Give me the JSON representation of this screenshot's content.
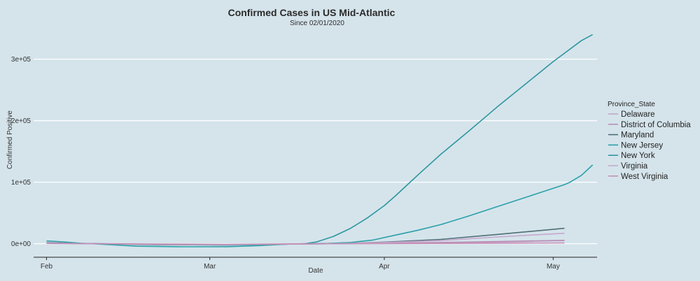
{
  "chart_data": {
    "type": "line",
    "title": "Confirmed Cases in US Mid-Atlantic",
    "subtitle": "Since 02/01/2020",
    "xlabel": "Date",
    "ylabel": "Confirmed Positive",
    "x_ticks": [
      {
        "label": "Feb",
        "day": 0
      },
      {
        "label": "Mar",
        "day": 29
      },
      {
        "label": "Apr",
        "day": 60
      },
      {
        "label": "May",
        "day": 90
      }
    ],
    "xlim_days": [
      -2.3,
      97.8
    ],
    "y_ticks": [
      {
        "label": "0e+00",
        "value": 0
      },
      {
        "label": "1e+05",
        "value": 100000
      },
      {
        "label": "2e+05",
        "value": 200000
      },
      {
        "label": "3e+05",
        "value": 300000
      }
    ],
    "ylim": [
      -22000,
      345000
    ],
    "grid": true,
    "legend_title": "Province_State",
    "legend_position": "right",
    "series": [
      {
        "name": "Delaware",
        "color": "#c4a6c6",
        "points": [
          [
            0,
            2000
          ],
          [
            8,
            0
          ],
          [
            20,
            -1000
          ],
          [
            32,
            -2000
          ],
          [
            44,
            -500
          ],
          [
            52,
            0
          ],
          [
            60,
            800
          ],
          [
            70,
            1500
          ],
          [
            80,
            2500
          ],
          [
            92,
            5000
          ]
        ]
      },
      {
        "name": "District of Columbia",
        "color": "#b88fb8",
        "points": [
          [
            0,
            1500
          ],
          [
            8,
            0
          ],
          [
            20,
            -1500
          ],
          [
            32,
            -2000
          ],
          [
            44,
            -500
          ],
          [
            52,
            0
          ],
          [
            60,
            1000
          ],
          [
            70,
            2000
          ],
          [
            80,
            3500
          ],
          [
            92,
            5500
          ]
        ]
      },
      {
        "name": "Maryland",
        "color": "#4f6e76",
        "points": [
          [
            0,
            1000
          ],
          [
            8,
            0
          ],
          [
            20,
            -1500
          ],
          [
            32,
            -2000
          ],
          [
            44,
            -500
          ],
          [
            52,
            0
          ],
          [
            60,
            2500
          ],
          [
            70,
            7000
          ],
          [
            80,
            15000
          ],
          [
            92,
            25000
          ]
        ]
      },
      {
        "name": "New Jersey",
        "color": "#2aa0a8",
        "points": [
          [
            0,
            4500
          ],
          [
            3,
            3000
          ],
          [
            6,
            800
          ],
          [
            10,
            -1000
          ],
          [
            16,
            -4000
          ],
          [
            24,
            -5000
          ],
          [
            32,
            -5000
          ],
          [
            38,
            -3000
          ],
          [
            43,
            -500
          ],
          [
            47,
            0
          ],
          [
            50,
            500
          ],
          [
            54,
            2000
          ],
          [
            58,
            6000
          ],
          [
            62,
            14000
          ],
          [
            66,
            22000
          ],
          [
            70,
            31000
          ],
          [
            75,
            45000
          ],
          [
            80,
            60000
          ],
          [
            86,
            78000
          ],
          [
            92,
            96000
          ],
          [
            93,
            100000
          ],
          [
            95,
            111000
          ],
          [
            97,
            128000
          ]
        ]
      },
      {
        "name": "New York",
        "color": "#2e96a0",
        "points": [
          [
            0,
            1000
          ],
          [
            8,
            0
          ],
          [
            20,
            -1000
          ],
          [
            32,
            -2000
          ],
          [
            40,
            -1500
          ],
          [
            44,
            -500
          ],
          [
            46,
            0
          ],
          [
            48,
            3000
          ],
          [
            51,
            12000
          ],
          [
            54,
            25000
          ],
          [
            57,
            42000
          ],
          [
            60,
            62000
          ],
          [
            62,
            78000
          ],
          [
            64,
            95000
          ],
          [
            66,
            112000
          ],
          [
            70,
            145000
          ],
          [
            75,
            183000
          ],
          [
            80,
            222000
          ],
          [
            85,
            259000
          ],
          [
            90,
            296000
          ],
          [
            95,
            330000
          ],
          [
            97,
            340000
          ]
        ]
      },
      {
        "name": "Virginia",
        "color": "#c5a8cf",
        "points": [
          [
            0,
            500
          ],
          [
            8,
            0
          ],
          [
            20,
            -1000
          ],
          [
            32,
            -1500
          ],
          [
            44,
            -500
          ],
          [
            52,
            0
          ],
          [
            60,
            2000
          ],
          [
            70,
            5000
          ],
          [
            80,
            11000
          ],
          [
            92,
            17000
          ]
        ]
      },
      {
        "name": "West Virginia",
        "color": "#c78fb6",
        "points": [
          [
            0,
            500
          ],
          [
            8,
            0
          ],
          [
            20,
            -500
          ],
          [
            32,
            -1000
          ],
          [
            44,
            -200
          ],
          [
            52,
            0
          ],
          [
            60,
            200
          ],
          [
            70,
            500
          ],
          [
            80,
            800
          ],
          [
            92,
            1200
          ]
        ]
      }
    ]
  }
}
